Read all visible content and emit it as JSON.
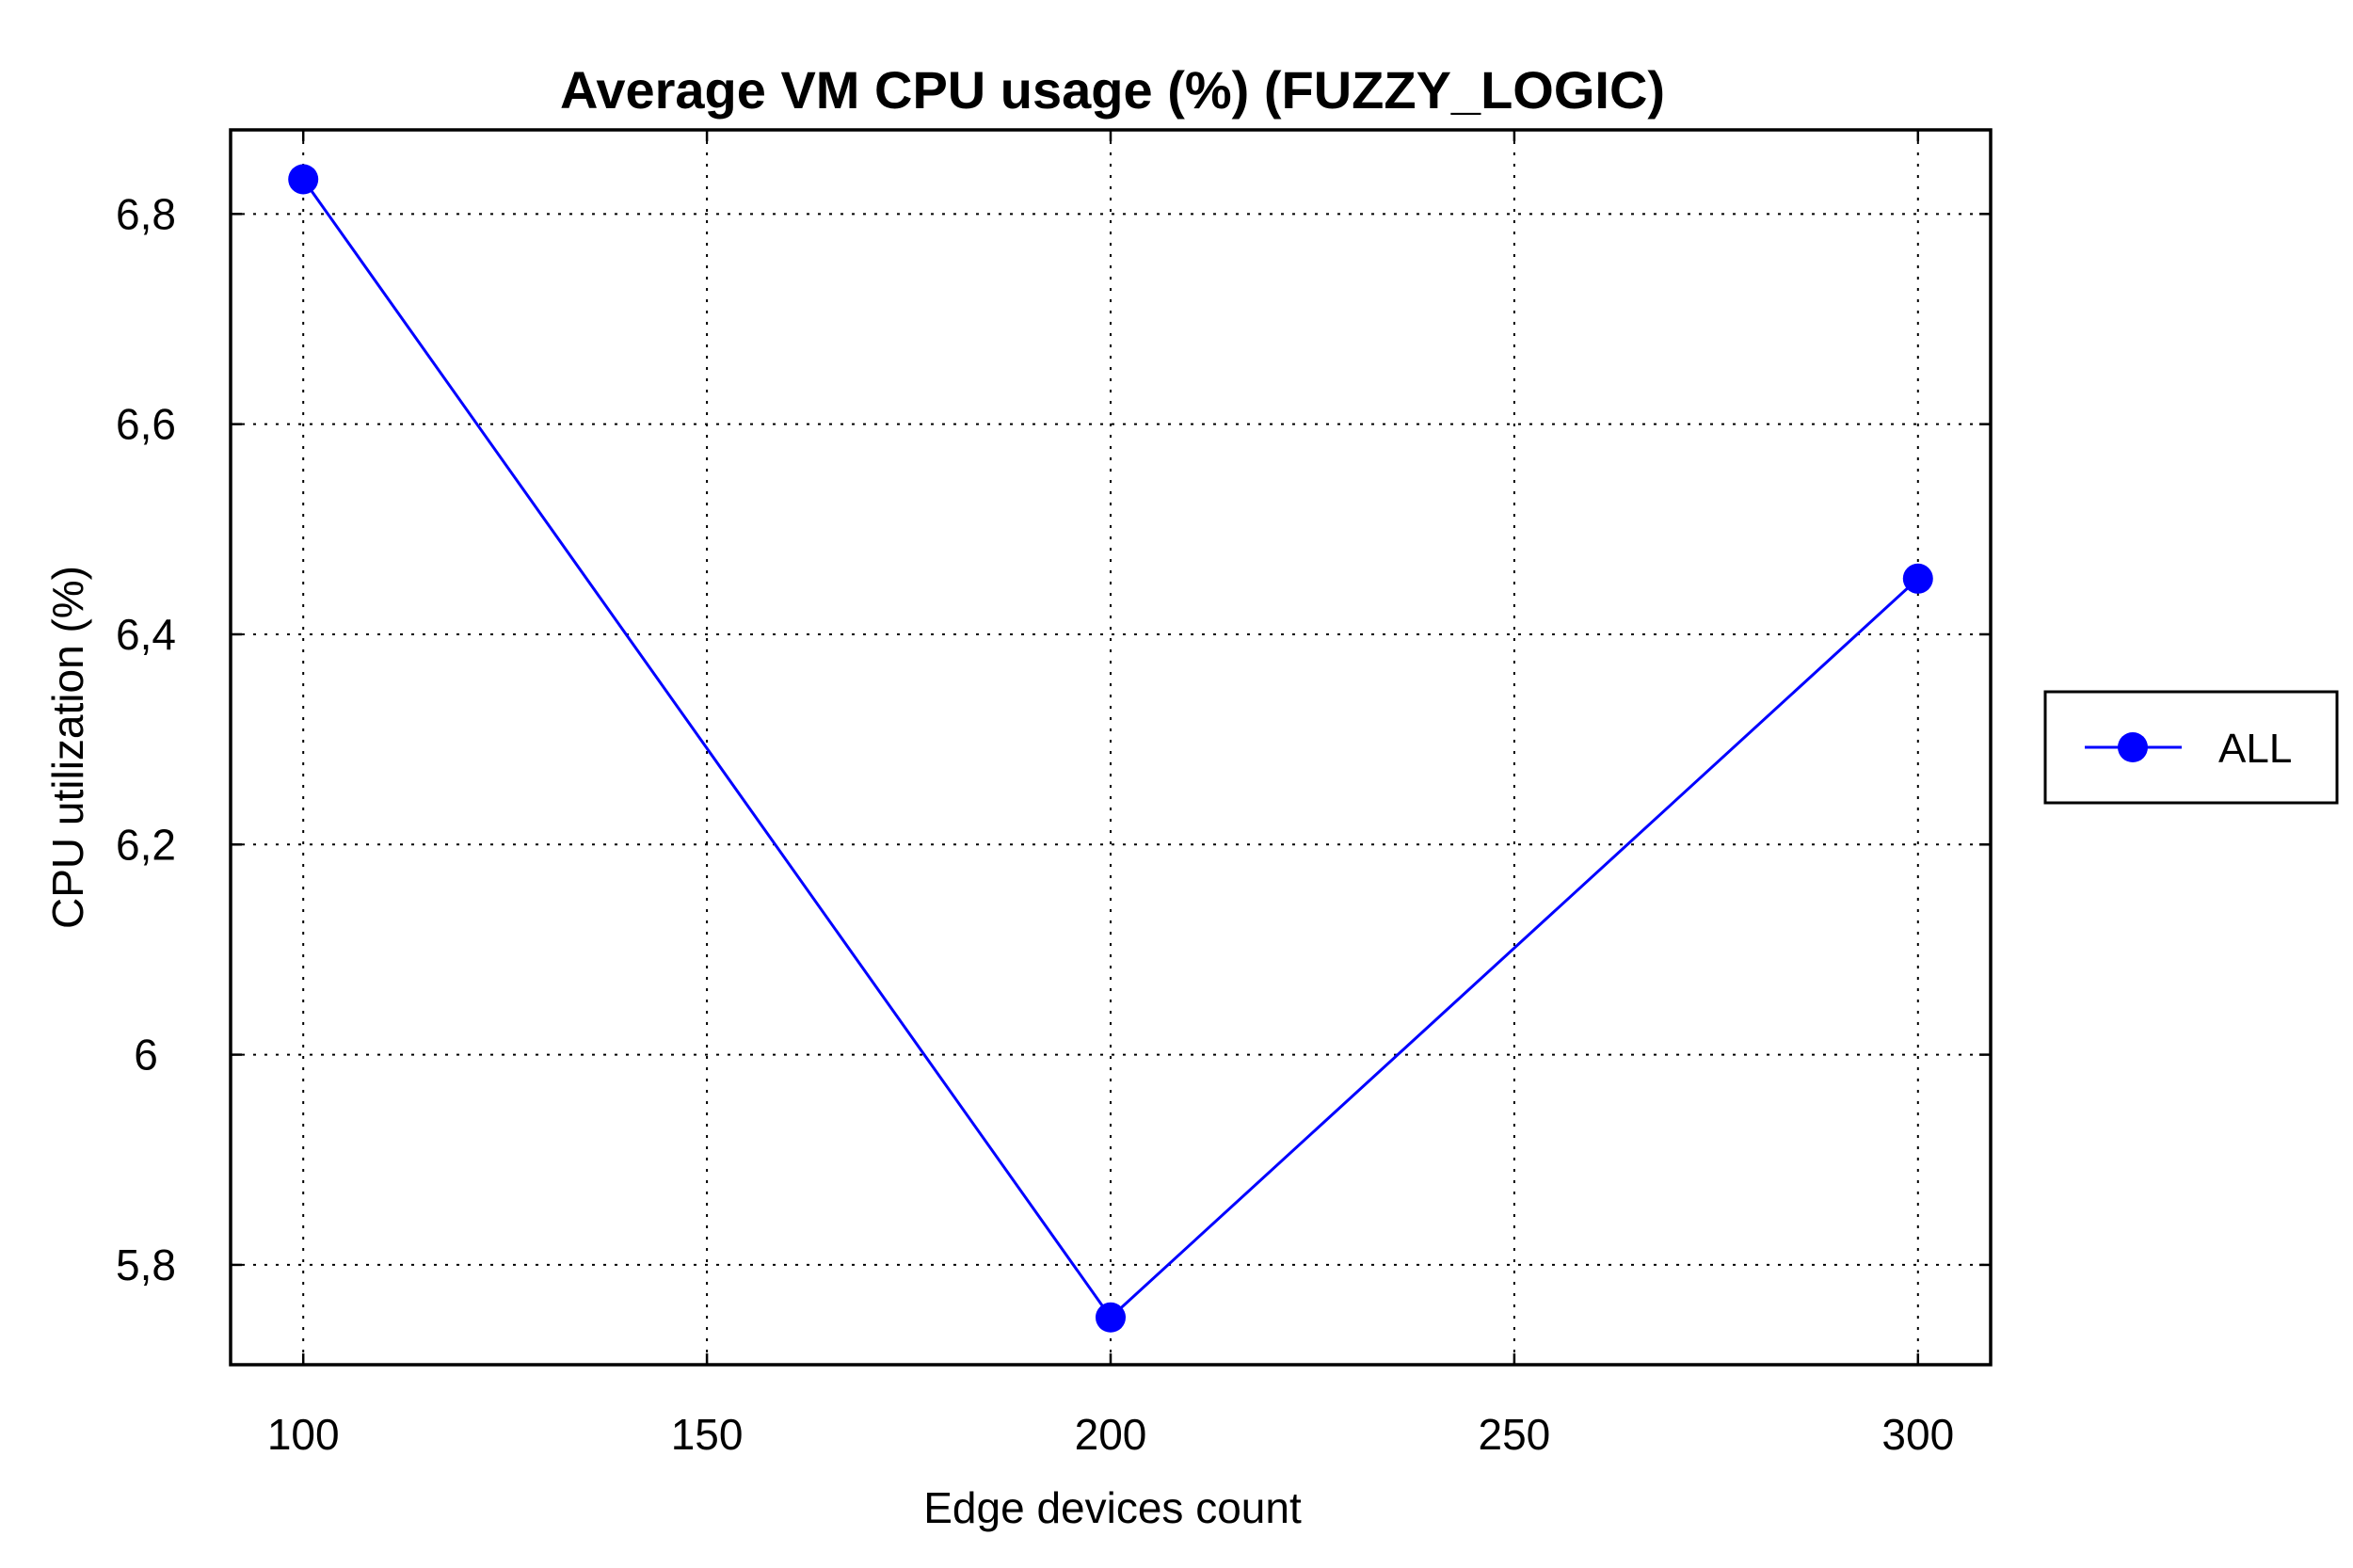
{
  "chart_data": {
    "type": "line",
    "title": "Average VM CPU usage (%) (FUZZY_LOGIC)",
    "xlabel": "Edge devices count",
    "ylabel": "CPU utilization (%)",
    "xlim": [
      91,
      309
    ],
    "ylim": [
      5.705,
      6.88
    ],
    "x_ticks": [
      100,
      150,
      200,
      250,
      300
    ],
    "x_tick_labels": [
      "100",
      "150",
      "200",
      "250",
      "300"
    ],
    "y_ticks": [
      5.8,
      6.0,
      6.2,
      6.4,
      6.6,
      6.8
    ],
    "y_tick_labels": [
      "5,8",
      "6",
      "6,2",
      "6,4",
      "6,6",
      "6,8"
    ],
    "grid": true,
    "legend_position": "right",
    "series": [
      {
        "name": "ALL",
        "color": "#0000ff",
        "x": [
          100,
          200,
          300
        ],
        "y": [
          6.833,
          5.75,
          6.453
        ]
      }
    ]
  }
}
